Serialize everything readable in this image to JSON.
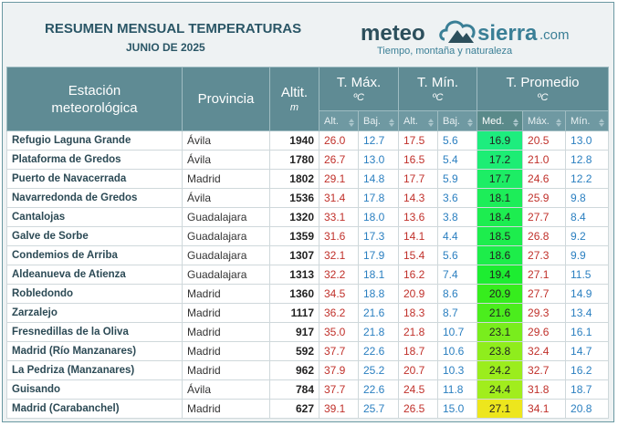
{
  "header": {
    "title": "RESUMEN MENSUAL TEMPERATURAS",
    "subtitle": "JUNIO DE 2025",
    "logo": {
      "meteo": "meteo",
      "sierra": "sierra",
      "com": ".com",
      "tagline": "Tiempo, montaña y naturaleza"
    }
  },
  "table": {
    "columns": {
      "station": "Estación meteorológica",
      "province": "Provincia",
      "altitude": "Altit.",
      "altitude_unit": "m",
      "tmax": "T. Máx.",
      "tmax_unit": "ºC",
      "tmin": "T. Mín.",
      "tmin_unit": "ºC",
      "tavg": "T. Promedio",
      "tavg_unit": "ºC",
      "sub": [
        "Alt.",
        "Baj.",
        "Alt.",
        "Baj.",
        "Med.",
        "Máx.",
        "Mín."
      ]
    },
    "rows": [
      [
        "Refugio Laguna Grande",
        "Ávila",
        "1940",
        "26.0",
        "12.7",
        "17.5",
        "5.6",
        "16.9",
        "20.5",
        "13.0"
      ],
      [
        "Plataforma de Gredos",
        "Ávila",
        "1780",
        "26.7",
        "13.0",
        "16.5",
        "5.4",
        "17.2",
        "21.0",
        "12.8"
      ],
      [
        "Puerto de Navacerrada",
        "Madrid",
        "1802",
        "29.1",
        "14.8",
        "17.7",
        "5.9",
        "17.7",
        "24.6",
        "12.2"
      ],
      [
        "Navarredonda de Gredos",
        "Ávila",
        "1536",
        "31.4",
        "17.8",
        "14.3",
        "3.6",
        "18.1",
        "25.9",
        "9.8"
      ],
      [
        "Cantalojas",
        "Guadalajara",
        "1320",
        "33.1",
        "18.0",
        "13.6",
        "3.8",
        "18.4",
        "27.7",
        "8.4"
      ],
      [
        "Galve de Sorbe",
        "Guadalajara",
        "1359",
        "31.6",
        "17.3",
        "14.1",
        "4.4",
        "18.5",
        "26.8",
        "9.2"
      ],
      [
        "Condemios de Arriba",
        "Guadalajara",
        "1307",
        "32.1",
        "17.9",
        "15.4",
        "5.6",
        "18.6",
        "27.3",
        "9.9"
      ],
      [
        "Aldeanueva de Atienza",
        "Guadalajara",
        "1313",
        "32.2",
        "18.1",
        "16.2",
        "7.4",
        "19.4",
        "27.1",
        "11.5"
      ],
      [
        "Robledondo",
        "Madrid",
        "1360",
        "34.5",
        "18.8",
        "20.9",
        "8.6",
        "20.9",
        "27.7",
        "14.9"
      ],
      [
        "Zarzalejo",
        "Madrid",
        "1117",
        "36.2",
        "21.6",
        "18.3",
        "8.7",
        "21.6",
        "29.3",
        "13.4"
      ],
      [
        "Fresnedillas de la Oliva",
        "Madrid",
        "917",
        "35.0",
        "21.8",
        "21.8",
        "10.7",
        "23.1",
        "29.6",
        "16.1"
      ],
      [
        "Madrid (Río Manzanares)",
        "Madrid",
        "592",
        "37.7",
        "22.6",
        "18.7",
        "10.6",
        "23.8",
        "32.4",
        "14.7"
      ],
      [
        "La Pedriza (Manzanares)",
        "Madrid",
        "962",
        "37.9",
        "25.2",
        "20.7",
        "10.3",
        "24.2",
        "32.7",
        "16.2"
      ],
      [
        "Guisando",
        "Ávila",
        "784",
        "37.7",
        "22.6",
        "24.5",
        "11.8",
        "24.4",
        "31.8",
        "18.7"
      ],
      [
        "Madrid (Carabanchel)",
        "Madrid",
        "627",
        "39.1",
        "25.7",
        "26.5",
        "15.0",
        "27.1",
        "34.1",
        "20.8"
      ]
    ]
  }
}
